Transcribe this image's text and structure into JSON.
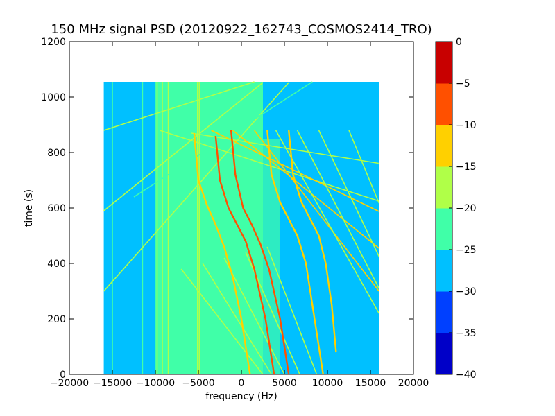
{
  "chart_data": {
    "type": "heatmap",
    "title": "150 MHz signal PSD (20120922_162743_COSMOS2414_TRO)",
    "xlabel": "frequency (Hz)",
    "ylabel": "time (s)",
    "xlim": [
      -20000,
      20000
    ],
    "ylim": [
      0,
      1200
    ],
    "xticks": [
      -20000,
      -15000,
      -10000,
      -5000,
      0,
      5000,
      10000,
      15000,
      20000
    ],
    "xtick_labels": [
      "−20000",
      "−15000",
      "−10000",
      "−5000",
      "0",
      "5000",
      "10000",
      "15000",
      "20000"
    ],
    "yticks": [
      0,
      200,
      400,
      600,
      800,
      1000,
      1200
    ],
    "ytick_labels": [
      "0",
      "200",
      "400",
      "600",
      "800",
      "1000",
      "1200"
    ],
    "data_extent": {
      "x": [
        -16000,
        16000
      ],
      "y": [
        0,
        1055
      ]
    },
    "colorbar": {
      "levels": [
        -40,
        -35,
        -30,
        -25,
        -20,
        -15,
        -10,
        -5,
        0
      ],
      "tick_labels": [
        "−40",
        "−35",
        "−30",
        "−25",
        "−20",
        "−15",
        "−10",
        "−5",
        "0"
      ],
      "colors": [
        "#0000c8",
        "#0040ff",
        "#00c0ff",
        "#40ffa8",
        "#b0ff48",
        "#ffd000",
        "#ff5000",
        "#c80000"
      ]
    },
    "background": {
      "base_color": "#00c0ff",
      "noise_band": {
        "x": [
          -10000,
          2500
        ],
        "color": "#40ffa8"
      },
      "noise_band_right": {
        "x": [
          2500,
          4500
        ],
        "color": "#40ffa8",
        "y": [
          0,
          850
        ]
      }
    },
    "vertical_lines": [
      {
        "x": -9800,
        "color": "#b0ff48"
      },
      {
        "x": -9200,
        "color": "#b0ff48"
      },
      {
        "x": -8500,
        "color": "#b0ff48"
      },
      {
        "x": -5100,
        "color": "#b0ff48"
      },
      {
        "x": -4900,
        "color": "#b0ff48"
      },
      {
        "x": -15000,
        "color": "#40ffa8"
      },
      {
        "x": -11500,
        "color": "#40ffa8"
      }
    ],
    "tracks": [
      {
        "f0": -16000,
        "t0": 880,
        "k": -10,
        "c": "#b0ff48"
      },
      {
        "f0": -16000,
        "t0": 590,
        "k": -25,
        "c": "#b0ff48"
      },
      {
        "f0": -16000,
        "t0": 300,
        "k": -35,
        "c": "#b0ff48"
      },
      {
        "f0": -12500,
        "t0": 640,
        "k": -20,
        "c": "#40ffa8"
      },
      {
        "f0": -9500,
        "t0": 880,
        "k": 10,
        "c": "#b0ff48"
      },
      {
        "f0": -5800,
        "t0": 870,
        "k": 5,
        "c": "#b0ff48"
      },
      {
        "f0": -3500,
        "t0": 880,
        "k": 15,
        "c": "#ffd000"
      },
      {
        "f0": -1000,
        "t0": 880,
        "k": 25,
        "c": "#ffd000"
      },
      {
        "f0": 1500,
        "t0": 880,
        "k": 40,
        "c": "#ffd000"
      },
      {
        "f0": 4000,
        "t0": 880,
        "k": 55,
        "c": "#b0ff48"
      },
      {
        "f0": 6500,
        "t0": 880,
        "k": 60,
        "c": "#b0ff48"
      },
      {
        "f0": 9000,
        "t0": 880,
        "k": 65,
        "c": "#b0ff48"
      },
      {
        "f0": 12500,
        "t0": 880,
        "k": 75,
        "c": "#b0ff48"
      },
      {
        "f0": -7000,
        "t0": 380,
        "k": 40,
        "c": "#b0ff48"
      },
      {
        "f0": -4500,
        "t0": 400,
        "k": 50,
        "c": "#b0ff48"
      },
      {
        "f0": -2000,
        "t0": 420,
        "k": 60,
        "c": "#b0ff48"
      },
      {
        "f0": 500,
        "t0": 440,
        "k": 70,
        "c": "#b0ff48"
      },
      {
        "f0": 3000,
        "t0": 460,
        "k": 80,
        "c": "#b0ff48"
      }
    ],
    "bright_tracks": [
      {
        "points": [
          [
            -3000,
            860
          ],
          [
            -2500,
            700
          ],
          [
            -1500,
            600
          ],
          [
            -500,
            540
          ],
          [
            500,
            480
          ],
          [
            1500,
            380
          ],
          [
            2800,
            200
          ],
          [
            3800,
            0
          ]
        ],
        "c": "#ff5000"
      },
      {
        "points": [
          [
            -1200,
            880
          ],
          [
            -700,
            720
          ],
          [
            200,
            600
          ],
          [
            1200,
            540
          ],
          [
            2200,
            470
          ],
          [
            3200,
            380
          ],
          [
            4500,
            200
          ],
          [
            5500,
            0
          ]
        ],
        "c": "#ff5000"
      },
      {
        "points": [
          [
            3000,
            880
          ],
          [
            3500,
            720
          ],
          [
            4500,
            620
          ],
          [
            5500,
            560
          ],
          [
            6500,
            500
          ],
          [
            7500,
            400
          ],
          [
            8500,
            200
          ],
          [
            9500,
            0
          ]
        ],
        "c": "#ffd000"
      },
      {
        "points": [
          [
            -5500,
            870
          ],
          [
            -5000,
            700
          ],
          [
            -4000,
            610
          ],
          [
            -3000,
            540
          ],
          [
            -2000,
            460
          ],
          [
            -1000,
            350
          ],
          [
            0,
            200
          ],
          [
            1000,
            0
          ]
        ],
        "c": "#ffd000"
      },
      {
        "points": [
          [
            5500,
            880
          ],
          [
            6000,
            720
          ],
          [
            7000,
            620
          ],
          [
            8000,
            560
          ],
          [
            9000,
            500
          ],
          [
            9800,
            400
          ],
          [
            10500,
            250
          ],
          [
            11000,
            80
          ]
        ],
        "c": "#ffd000"
      }
    ]
  }
}
